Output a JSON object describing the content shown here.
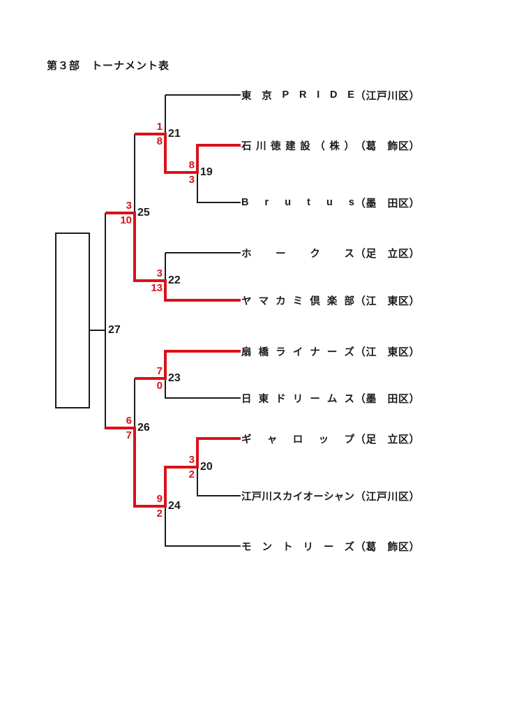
{
  "title": "第３部　トーナメント表",
  "accent_color": "#d9121a",
  "line_color": "#1b1b1b",
  "teams": [
    {
      "name": "東京PRIDE",
      "district": "（江戸川区）"
    },
    {
      "name": "石川徳建設（株）",
      "district": "（葛　飾区）"
    },
    {
      "name": "Brutus",
      "district": "（墨　田区）"
    },
    {
      "name": "ホークス",
      "district": "（足　立区）"
    },
    {
      "name": "ヤマカミ倶楽部",
      "district": "（江　東区）"
    },
    {
      "name": "扇橋ライナーズ",
      "district": "（江　東区）"
    },
    {
      "name": "日東ドリームス",
      "district": "（墨　田区）"
    },
    {
      "name": "ギャロップ",
      "district": "（足　立区）"
    },
    {
      "name": "江戸川スカイオーシャン",
      "district": "（江戸川区）"
    },
    {
      "name": "モントリーズ",
      "district": "（葛　飾区）"
    }
  ],
  "matches": {
    "m19": {
      "label": "19",
      "top_score": "8",
      "bottom_score": "3"
    },
    "m20": {
      "label": "20",
      "top_score": "3",
      "bottom_score": "2"
    },
    "m21": {
      "label": "21",
      "top_score": "1",
      "bottom_score": "8"
    },
    "m22": {
      "label": "22",
      "top_score": "3",
      "bottom_score": "13"
    },
    "m23": {
      "label": "23",
      "top_score": "7",
      "bottom_score": "0"
    },
    "m24": {
      "label": "24",
      "top_score": "9",
      "bottom_score": "2"
    },
    "m25": {
      "label": "25",
      "top_score": "3",
      "bottom_score": "10"
    },
    "m26": {
      "label": "26",
      "top_score": "6",
      "bottom_score": "7"
    },
    "m27": {
      "label": "27",
      "top_score": "",
      "bottom_score": ""
    }
  }
}
